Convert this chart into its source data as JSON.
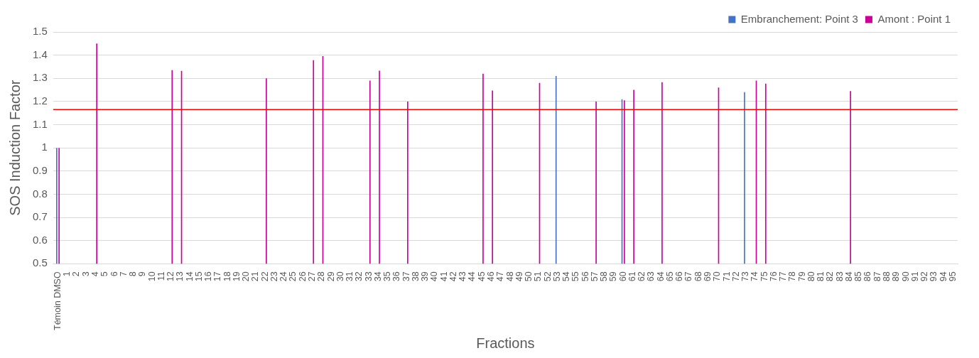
{
  "chart_data": {
    "type": "bar",
    "xlabel": "Fractions",
    "ylabel": "SOS Induction Factor",
    "categories": [
      "Témoin DMSO",
      "1",
      "2",
      "3",
      "4",
      "5",
      "6",
      "7",
      "8",
      "9",
      "10",
      "11",
      "12",
      "13",
      "14",
      "15",
      "16",
      "17",
      "18",
      "19",
      "20",
      "21",
      "22",
      "23",
      "24",
      "25",
      "26",
      "27",
      "28",
      "29",
      "30",
      "31",
      "32",
      "33",
      "34",
      "35",
      "36",
      "37",
      "38",
      "39",
      "40",
      "41",
      "42",
      "43",
      "44",
      "45",
      "46",
      "47",
      "48",
      "49",
      "50",
      "51",
      "52",
      "53",
      "54",
      "55",
      "56",
      "57",
      "58",
      "59",
      "60",
      "61",
      "62",
      "63",
      "64",
      "65",
      "66",
      "67",
      "68",
      "69",
      "70",
      "71",
      "72",
      "73",
      "74",
      "75",
      "76",
      "77",
      "78",
      "79",
      "80",
      "81",
      "82",
      "83",
      "84",
      "85",
      "86",
      "87",
      "88",
      "89",
      "90",
      "91",
      "92",
      "93",
      "94",
      "95"
    ],
    "series": [
      {
        "name": "Embranchement: Point 3",
        "color": "#4472c4",
        "values": [
          1.0,
          null,
          null,
          null,
          null,
          null,
          null,
          null,
          null,
          null,
          null,
          null,
          null,
          null,
          null,
          null,
          null,
          null,
          null,
          null,
          null,
          null,
          null,
          null,
          null,
          null,
          null,
          null,
          null,
          null,
          null,
          null,
          null,
          null,
          null,
          null,
          null,
          null,
          null,
          null,
          null,
          null,
          null,
          null,
          null,
          null,
          null,
          null,
          null,
          null,
          null,
          null,
          null,
          1.31,
          null,
          null,
          null,
          null,
          null,
          null,
          1.21,
          null,
          null,
          null,
          null,
          null,
          null,
          null,
          null,
          null,
          null,
          null,
          null,
          1.24,
          null,
          null,
          null,
          null,
          null,
          null,
          null,
          null,
          null,
          null,
          null,
          null,
          null,
          null,
          null,
          null,
          null,
          null,
          null,
          null,
          null,
          null
        ]
      },
      {
        "name": "Amont : Point 1",
        "color": "#cc0099",
        "values": [
          1.0,
          null,
          null,
          null,
          1.45,
          null,
          null,
          null,
          null,
          null,
          null,
          null,
          1.335,
          1.332,
          null,
          null,
          null,
          null,
          null,
          null,
          null,
          null,
          1.3,
          null,
          null,
          null,
          null,
          1.378,
          1.396,
          null,
          null,
          null,
          null,
          1.29,
          1.333,
          null,
          null,
          1.2,
          null,
          null,
          null,
          null,
          null,
          null,
          null,
          1.32,
          1.247,
          null,
          null,
          null,
          null,
          1.28,
          null,
          null,
          null,
          null,
          null,
          1.2,
          null,
          null,
          1.205,
          1.25,
          null,
          null,
          1.283,
          null,
          null,
          null,
          null,
          null,
          1.26,
          null,
          null,
          null,
          1.29,
          1.277,
          null,
          null,
          null,
          null,
          null,
          null,
          null,
          null,
          1.245,
          null,
          null,
          null,
          null,
          null,
          null,
          null,
          null,
          null,
          null,
          null
        ]
      }
    ],
    "ylim": [
      0.5,
      1.5
    ],
    "yticks": [
      0.5,
      0.6,
      0.7,
      0.8,
      0.9,
      1,
      1.1,
      1.2,
      1.3,
      1.4,
      1.5
    ],
    "grid": "y",
    "legend": "top right",
    "ref_lines": [
      {
        "axis": "y",
        "value": 1.165,
        "color": "#ff0000"
      }
    ]
  }
}
